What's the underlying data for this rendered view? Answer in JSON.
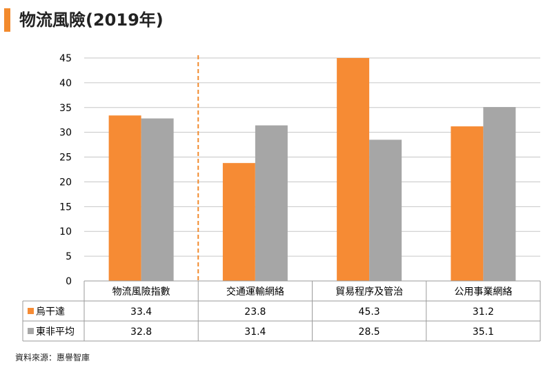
{
  "title": "物流風險(2019年)",
  "source": "資料來源：惠譽智庫",
  "colors": {
    "accent": "#F28A2D",
    "series1": "#F68B34",
    "series2": "#A6A6A6",
    "grid": "#C6C6C6",
    "divider": "#F28A2D"
  },
  "chart_data": {
    "type": "bar",
    "title": "物流風險(2019年)",
    "categories": [
      "物流風險指數",
      "交通運輸網絡",
      "貿易程序及管治",
      "公用事業網絡"
    ],
    "series": [
      {
        "name": "烏干達",
        "values": [
          33.4,
          23.8,
          45.3,
          31.2
        ]
      },
      {
        "name": "東非平均",
        "values": [
          32.8,
          31.4,
          28.5,
          35.1
        ]
      }
    ],
    "value_labels": [
      [
        "33.4",
        "23.8",
        "45.3",
        "31.2"
      ],
      [
        "32.8",
        "31.4",
        "28.5",
        "35.1"
      ]
    ],
    "ylim": [
      0,
      45
    ],
    "yticks": [
      "0",
      "5",
      "10",
      "15",
      "20",
      "25",
      "30",
      "35",
      "40",
      "45"
    ],
    "ytick_values": [
      0,
      5,
      10,
      15,
      20,
      25,
      30,
      35,
      40,
      45
    ],
    "grid": true,
    "legend": "data-table",
    "divider_after_category": 0
  }
}
